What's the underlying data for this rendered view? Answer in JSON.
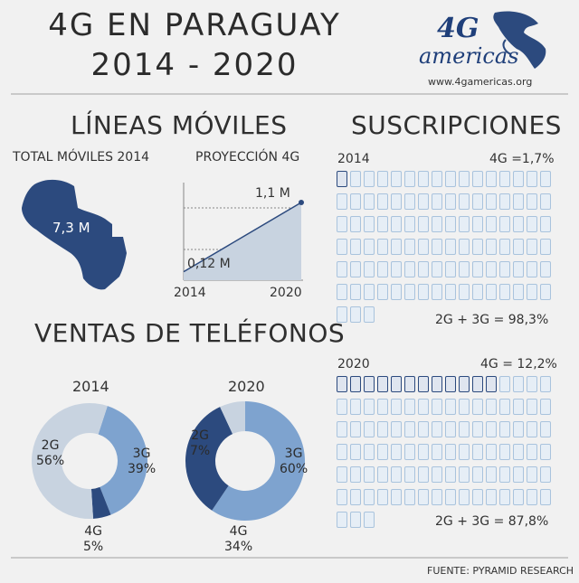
{
  "header": {
    "title_line1": "4G EN PARAGUAY",
    "title_line2": "2014 - 2020",
    "logo_big": "4G",
    "logo_word": "americas",
    "website": "www.4gamericas.org"
  },
  "lineas": {
    "heading": "LÍNEAS MÓVILES",
    "total_label": "TOTAL MÓVILES 2014",
    "total_value": "7,3 M",
    "projection_label": "PROYECCIÓN 4G",
    "start_value_label": "0,12 M",
    "end_value_label": "1,1 M",
    "x_start": "2014",
    "x_end": "2020"
  },
  "suscripciones": {
    "heading": "SUSCRIPCIONES",
    "y2014": {
      "year": "2014",
      "label_4g": "4G =1,7%",
      "label_other": "2G + 3G = 98,3%",
      "dark_count": 1
    },
    "y2020": {
      "year": "2020",
      "label_4g": "4G = 12,2%",
      "label_other": "2G + 3G = 87,8%",
      "dark_count": 12
    },
    "total_icons": 99
  },
  "ventas": {
    "heading": "VENTAS DE TELÉFONOS",
    "d2014": {
      "year": "2014",
      "label_2g_name": "2G",
      "label_2g_pct": "56%",
      "label_3g_name": "3G",
      "label_3g_pct": "39%",
      "label_4g_name": "4G",
      "label_4g_pct": "5%"
    },
    "d2020": {
      "year": "2020",
      "label_2g_name": "2G",
      "label_2g_pct": "7%",
      "label_3g_name": "3G",
      "label_3g_pct": "60%",
      "label_4g_name": "4G",
      "label_4g_pct": "34%"
    }
  },
  "footer": {
    "source": "FUENTE: PYRAMID RESEARCH"
  },
  "colors": {
    "dark": "#2c4a7e",
    "mid": "#7ea3cf",
    "light": "#c8d3e0",
    "bg": "#f1f1f1",
    "ink": "#2b2b2b"
  },
  "chart_data": [
    {
      "type": "area",
      "title": "PROYECCIÓN 4G",
      "x": [
        "2014",
        "2020"
      ],
      "values": [
        0.12,
        1.1
      ],
      "unit": "M"
    },
    {
      "type": "pie",
      "title": "2014",
      "categories": [
        "2G",
        "3G",
        "4G"
      ],
      "values": [
        56,
        39,
        5
      ]
    },
    {
      "type": "pie",
      "title": "2020",
      "categories": [
        "2G",
        "3G",
        "4G"
      ],
      "values": [
        7,
        60,
        34
      ]
    },
    {
      "type": "table",
      "title": "SUSCRIPCIONES",
      "categories": [
        "2014",
        "2020"
      ],
      "series": [
        {
          "name": "4G",
          "values": [
            1.7,
            12.2
          ]
        },
        {
          "name": "2G + 3G",
          "values": [
            98.3,
            87.8
          ]
        }
      ],
      "unit": "%"
    }
  ]
}
